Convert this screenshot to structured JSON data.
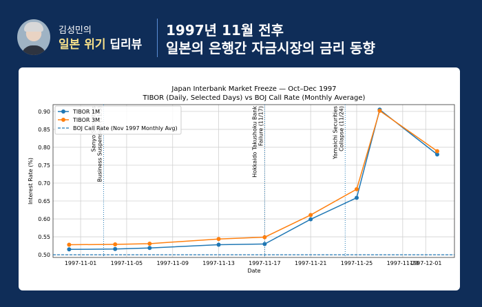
{
  "header": {
    "brand_line1": "김성민의",
    "brand_highlight": "일본 위기",
    "brand_rest": "딥리뷰",
    "title_line1": "1997년 11월 전후",
    "title_line2": "일본의 은행간 자금시장의 금리 동향",
    "background_color": "#0f2d58",
    "highlight_color": "#f6e08a"
  },
  "chart_data": {
    "type": "line",
    "title": "Japan Interbank Market Freeze — Oct–Dec 1997",
    "subtitle": "TIBOR (Daily, Selected Days) vs BOJ Call Rate (Monthly Average)",
    "xlabel": "Date",
    "ylabel": "Interest Rate (%)",
    "xlim": [
      "1997-10-29",
      "1997-12-03"
    ],
    "ylim": [
      0.4925,
      0.919
    ],
    "grid": true,
    "legend_position": "top-left",
    "x_ticks": [
      "1997-11-01",
      "1997-11-05",
      "1997-11-09",
      "1997-11-13",
      "1997-11-17",
      "1997-11-21",
      "1997-11-25",
      "1997-11-29",
      "1997-12-01"
    ],
    "y_ticks": [
      "0.50",
      "0.55",
      "0.60",
      "0.65",
      "0.70",
      "0.75",
      "0.80",
      "0.85",
      "0.90"
    ],
    "x": [
      "1997-10-31",
      "1997-11-04",
      "1997-11-07",
      "1997-11-13",
      "1997-11-17",
      "1997-11-21",
      "1997-11-25",
      "1997-11-27",
      "1997-12-02"
    ],
    "series": [
      {
        "name": "TIBOR 1M",
        "color": "#1f77b4",
        "values": [
          0.515,
          0.516,
          0.519,
          0.528,
          0.53,
          0.599,
          0.659,
          0.905,
          0.78
        ]
      },
      {
        "name": "TIBOR 3M",
        "color": "#ff7f0e",
        "values": [
          0.528,
          0.529,
          0.531,
          0.544,
          0.549,
          0.611,
          0.683,
          0.902,
          0.789
        ]
      }
    ],
    "reference_line": {
      "name": "BOJ Call Rate (Nov 1997 Monthly Avg)",
      "value": 0.5,
      "color": "#1f77b4",
      "style": "dashed"
    },
    "events": [
      {
        "date": "1997-11-03",
        "label_lines": [
          "Sanyo Securities",
          "Business Suspension (11/3)"
        ]
      },
      {
        "date": "1997-11-17",
        "label_lines": [
          "Hokkaido Takushoku Bank",
          "Failure (11/17)"
        ]
      },
      {
        "date": "1997-11-24",
        "label_lines": [
          "Yamaichi Securities",
          "Collapse (11/24)"
        ]
      }
    ]
  }
}
